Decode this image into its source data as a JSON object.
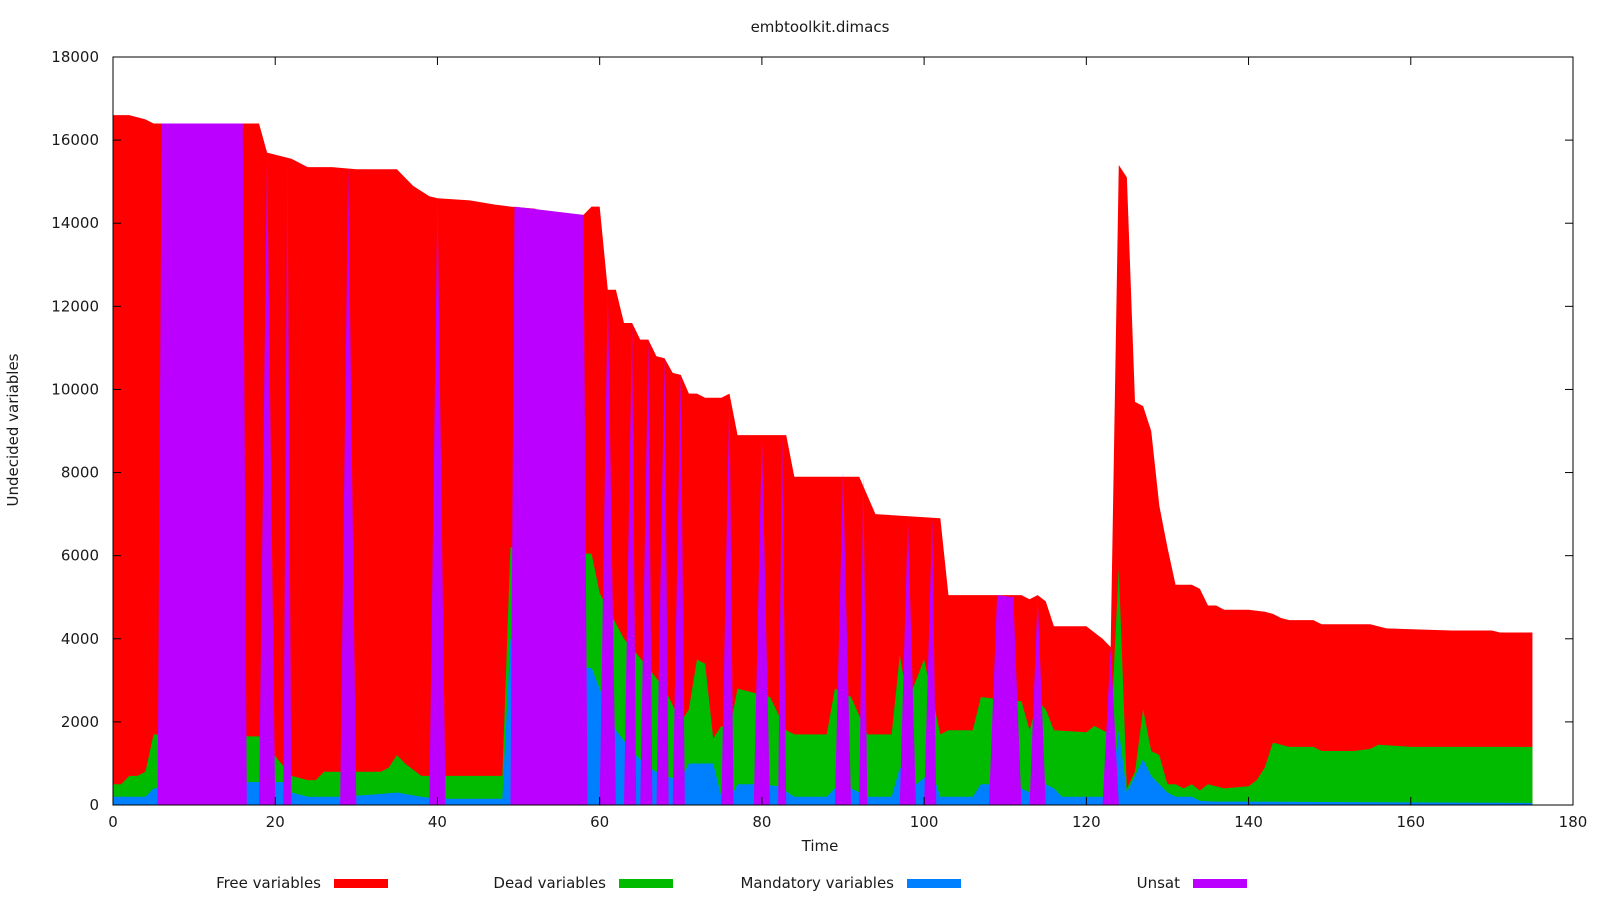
{
  "chart_data": {
    "type": "area",
    "title": "embtoolkit.dimacs",
    "xlabel": "Time",
    "ylabel": "Undecided variables",
    "xlim": [
      0,
      180
    ],
    "ylim": [
      0,
      18000
    ],
    "xticks": [
      0,
      20,
      40,
      60,
      80,
      100,
      120,
      140,
      160,
      180
    ],
    "yticks": [
      0,
      2000,
      4000,
      6000,
      8000,
      10000,
      12000,
      14000,
      16000,
      18000
    ],
    "grid": false,
    "stacked": true,
    "legend_position": "bottom",
    "series": [
      {
        "name": "Free variables",
        "color": "#ff0000",
        "points": [
          [
            0,
            16600
          ],
          [
            2,
            16600
          ],
          [
            4,
            16500
          ],
          [
            5,
            16400
          ],
          [
            6,
            16400
          ],
          [
            8,
            16400
          ],
          [
            12,
            16200
          ],
          [
            15,
            16100
          ],
          [
            16,
            16400
          ],
          [
            18,
            16400
          ],
          [
            19,
            15700
          ],
          [
            21,
            15600
          ],
          [
            22,
            15550
          ],
          [
            24,
            15350
          ],
          [
            27,
            15350
          ],
          [
            30,
            15300
          ],
          [
            35,
            15300
          ],
          [
            37,
            14900
          ],
          [
            39,
            14650
          ],
          [
            40,
            14600
          ],
          [
            44,
            14550
          ],
          [
            47,
            14450
          ],
          [
            49,
            14400
          ],
          [
            52,
            14350
          ],
          [
            54,
            14200
          ],
          [
            58,
            14200
          ],
          [
            59,
            14400
          ],
          [
            60,
            14400
          ],
          [
            61,
            12400
          ],
          [
            62,
            12400
          ],
          [
            63,
            11600
          ],
          [
            64,
            11600
          ],
          [
            65,
            11200
          ],
          [
            66,
            11200
          ],
          [
            67,
            10800
          ],
          [
            68,
            10750
          ],
          [
            69,
            10400
          ],
          [
            70,
            10350
          ],
          [
            71,
            9900
          ],
          [
            72,
            9900
          ],
          [
            73,
            9800
          ],
          [
            75,
            9800
          ],
          [
            76,
            9900
          ],
          [
            77,
            8900
          ],
          [
            81,
            8900
          ],
          [
            83,
            8900
          ],
          [
            84,
            7900
          ],
          [
            92,
            7900
          ],
          [
            94,
            7000
          ],
          [
            102,
            6900
          ],
          [
            103,
            5050
          ],
          [
            112,
            5050
          ],
          [
            113,
            4950
          ],
          [
            114,
            5050
          ],
          [
            115,
            4900
          ],
          [
            116,
            4300
          ],
          [
            120,
            4300
          ],
          [
            122,
            4000
          ],
          [
            123,
            3800
          ],
          [
            124,
            15400
          ],
          [
            125,
            15100
          ],
          [
            126,
            9700
          ],
          [
            127,
            9600
          ],
          [
            128,
            9000
          ],
          [
            129,
            7200
          ],
          [
            130,
            6200
          ],
          [
            131,
            5300
          ],
          [
            133,
            5300
          ],
          [
            134,
            5200
          ],
          [
            135,
            4800
          ],
          [
            136,
            4800
          ],
          [
            137,
            4700
          ],
          [
            140,
            4700
          ],
          [
            142,
            4650
          ],
          [
            143,
            4600
          ],
          [
            144,
            4500
          ],
          [
            145,
            4450
          ],
          [
            148,
            4450
          ],
          [
            149,
            4350
          ],
          [
            155,
            4350
          ],
          [
            157,
            4250
          ],
          [
            165,
            4200
          ],
          [
            170,
            4200
          ],
          [
            171,
            4150
          ],
          [
            175,
            4150
          ]
        ]
      },
      {
        "name": "Dead variables",
        "color": "#00bb00",
        "points": [
          [
            0,
            500
          ],
          [
            1,
            500
          ],
          [
            2,
            700
          ],
          [
            3,
            700
          ],
          [
            4,
            800
          ],
          [
            5,
            1700
          ],
          [
            17,
            1650
          ],
          [
            18,
            1650
          ],
          [
            22,
            700
          ],
          [
            24,
            600
          ],
          [
            25,
            600
          ],
          [
            26,
            800
          ],
          [
            33,
            800
          ],
          [
            34,
            900
          ],
          [
            35,
            1200
          ],
          [
            36,
            1000
          ],
          [
            38,
            700
          ],
          [
            40,
            700
          ],
          [
            48,
            700
          ],
          [
            49,
            6200
          ],
          [
            58,
            6050
          ],
          [
            59,
            6050
          ],
          [
            60,
            5100
          ],
          [
            63,
            4000
          ],
          [
            66,
            3300
          ],
          [
            68,
            2800
          ],
          [
            70,
            2000
          ],
          [
            71,
            2300
          ],
          [
            72,
            3500
          ],
          [
            73,
            3400
          ],
          [
            74,
            1600
          ],
          [
            75,
            1900
          ],
          [
            76,
            1800
          ],
          [
            77,
            2800
          ],
          [
            79,
            2700
          ],
          [
            81,
            2600
          ],
          [
            83,
            1800
          ],
          [
            84,
            1700
          ],
          [
            88,
            1700
          ],
          [
            89,
            2800
          ],
          [
            91,
            2600
          ],
          [
            93,
            1700
          ],
          [
            96,
            1700
          ],
          [
            97,
            3600
          ],
          [
            98,
            2500
          ],
          [
            100,
            3500
          ],
          [
            101,
            2600
          ],
          [
            102,
            1700
          ],
          [
            103,
            1800
          ],
          [
            106,
            1800
          ],
          [
            107,
            2600
          ],
          [
            111,
            2500
          ],
          [
            112,
            2500
          ],
          [
            113,
            1800
          ],
          [
            114,
            2500
          ],
          [
            115,
            2300
          ],
          [
            116,
            1800
          ],
          [
            120,
            1750
          ],
          [
            121,
            1900
          ],
          [
            122,
            1800
          ],
          [
            123,
            1700
          ],
          [
            124,
            5700
          ],
          [
            125,
            400
          ],
          [
            126,
            800
          ],
          [
            127,
            2300
          ],
          [
            128,
            1300
          ],
          [
            129,
            1200
          ],
          [
            130,
            500
          ],
          [
            131,
            500
          ],
          [
            132,
            400
          ],
          [
            133,
            500
          ],
          [
            134,
            350
          ],
          [
            135,
            500
          ],
          [
            137,
            400
          ],
          [
            140,
            450
          ],
          [
            141,
            600
          ],
          [
            142,
            900
          ],
          [
            143,
            1500
          ],
          [
            145,
            1400
          ],
          [
            148,
            1400
          ],
          [
            149,
            1300
          ],
          [
            152,
            1300
          ],
          [
            153,
            1300
          ],
          [
            155,
            1350
          ],
          [
            156,
            1450
          ],
          [
            160,
            1400
          ],
          [
            175,
            1400
          ]
        ]
      },
      {
        "name": "Mandatory variables",
        "color": "#0080ff",
        "points": [
          [
            0,
            200
          ],
          [
            4,
            200
          ],
          [
            5,
            400
          ],
          [
            17,
            550
          ],
          [
            21,
            550
          ],
          [
            22,
            300
          ],
          [
            24,
            200
          ],
          [
            27,
            200
          ],
          [
            28,
            200
          ],
          [
            32,
            250
          ],
          [
            35,
            300
          ],
          [
            38,
            200
          ],
          [
            40,
            150
          ],
          [
            48,
            150
          ],
          [
            49,
            4000
          ],
          [
            58,
            3300
          ],
          [
            59,
            3300
          ],
          [
            60,
            2800
          ],
          [
            62,
            1800
          ],
          [
            64,
            1300
          ],
          [
            66,
            900
          ],
          [
            68,
            700
          ],
          [
            70,
            600
          ],
          [
            71,
            1000
          ],
          [
            74,
            1000
          ],
          [
            75,
            200
          ],
          [
            76,
            100
          ],
          [
            77,
            500
          ],
          [
            80,
            500
          ],
          [
            82,
            450
          ],
          [
            84,
            200
          ],
          [
            88,
            200
          ],
          [
            89,
            400
          ],
          [
            91,
            400
          ],
          [
            93,
            200
          ],
          [
            96,
            200
          ],
          [
            97,
            900
          ],
          [
            99,
            500
          ],
          [
            101,
            800
          ],
          [
            102,
            200
          ],
          [
            106,
            200
          ],
          [
            107,
            500
          ],
          [
            111,
            500
          ],
          [
            112,
            400
          ],
          [
            113,
            300
          ],
          [
            115,
            500
          ],
          [
            116,
            400
          ],
          [
            117,
            200
          ],
          [
            120,
            200
          ],
          [
            123,
            200
          ],
          [
            124,
            1800
          ],
          [
            125,
            300
          ],
          [
            127,
            1100
          ],
          [
            128,
            700
          ],
          [
            129,
            500
          ],
          [
            130,
            300
          ],
          [
            131,
            200
          ],
          [
            133,
            200
          ],
          [
            134,
            100
          ],
          [
            136,
            80
          ],
          [
            140,
            80
          ],
          [
            175,
            50
          ]
        ]
      },
      {
        "name": "Unsat",
        "color": "#bb00ff",
        "points": [
          [
            5.5,
            0
          ],
          [
            6,
            16400
          ],
          [
            16,
            16400
          ],
          [
            16.5,
            0
          ],
          [
            18,
            0
          ],
          [
            19,
            15700
          ],
          [
            20,
            0
          ],
          [
            21,
            0
          ],
          [
            21.5,
            15600
          ],
          [
            22,
            0
          ],
          [
            28,
            0
          ],
          [
            29,
            15350
          ],
          [
            30,
            0
          ],
          [
            39,
            0
          ],
          [
            40,
            14650
          ],
          [
            41,
            0
          ],
          [
            49,
            0
          ],
          [
            49.5,
            14400
          ],
          [
            58,
            14200
          ],
          [
            58.5,
            0
          ],
          [
            60,
            0
          ],
          [
            61,
            12400
          ],
          [
            62,
            0
          ],
          [
            63,
            0
          ],
          [
            64,
            11600
          ],
          [
            64.5,
            0
          ],
          [
            65,
            0
          ],
          [
            66,
            11200
          ],
          [
            66.5,
            0
          ],
          [
            67,
            0
          ],
          [
            68,
            10800
          ],
          [
            68.5,
            0
          ],
          [
            69,
            0
          ],
          [
            70,
            10400
          ],
          [
            70.5,
            0
          ],
          [
            75,
            0
          ],
          [
            76,
            9900
          ],
          [
            76.5,
            0
          ],
          [
            79,
            0
          ],
          [
            80,
            8900
          ],
          [
            81,
            0
          ],
          [
            82,
            0
          ],
          [
            82.5,
            8900
          ],
          [
            83,
            0
          ],
          [
            89,
            0
          ],
          [
            90,
            8000
          ],
          [
            91,
            0
          ],
          [
            92,
            0
          ],
          [
            92.5,
            7900
          ],
          [
            93,
            0
          ],
          [
            97,
            0
          ],
          [
            98,
            6900
          ],
          [
            99,
            0
          ],
          [
            100,
            0
          ],
          [
            101,
            6900
          ],
          [
            101.5,
            0
          ],
          [
            108,
            0
          ],
          [
            109,
            5050
          ],
          [
            111,
            5000
          ],
          [
            112,
            0
          ],
          [
            113,
            0
          ],
          [
            114,
            5000
          ],
          [
            115,
            0
          ],
          [
            122,
            0
          ],
          [
            123,
            3800
          ],
          [
            124,
            0
          ]
        ]
      }
    ]
  }
}
